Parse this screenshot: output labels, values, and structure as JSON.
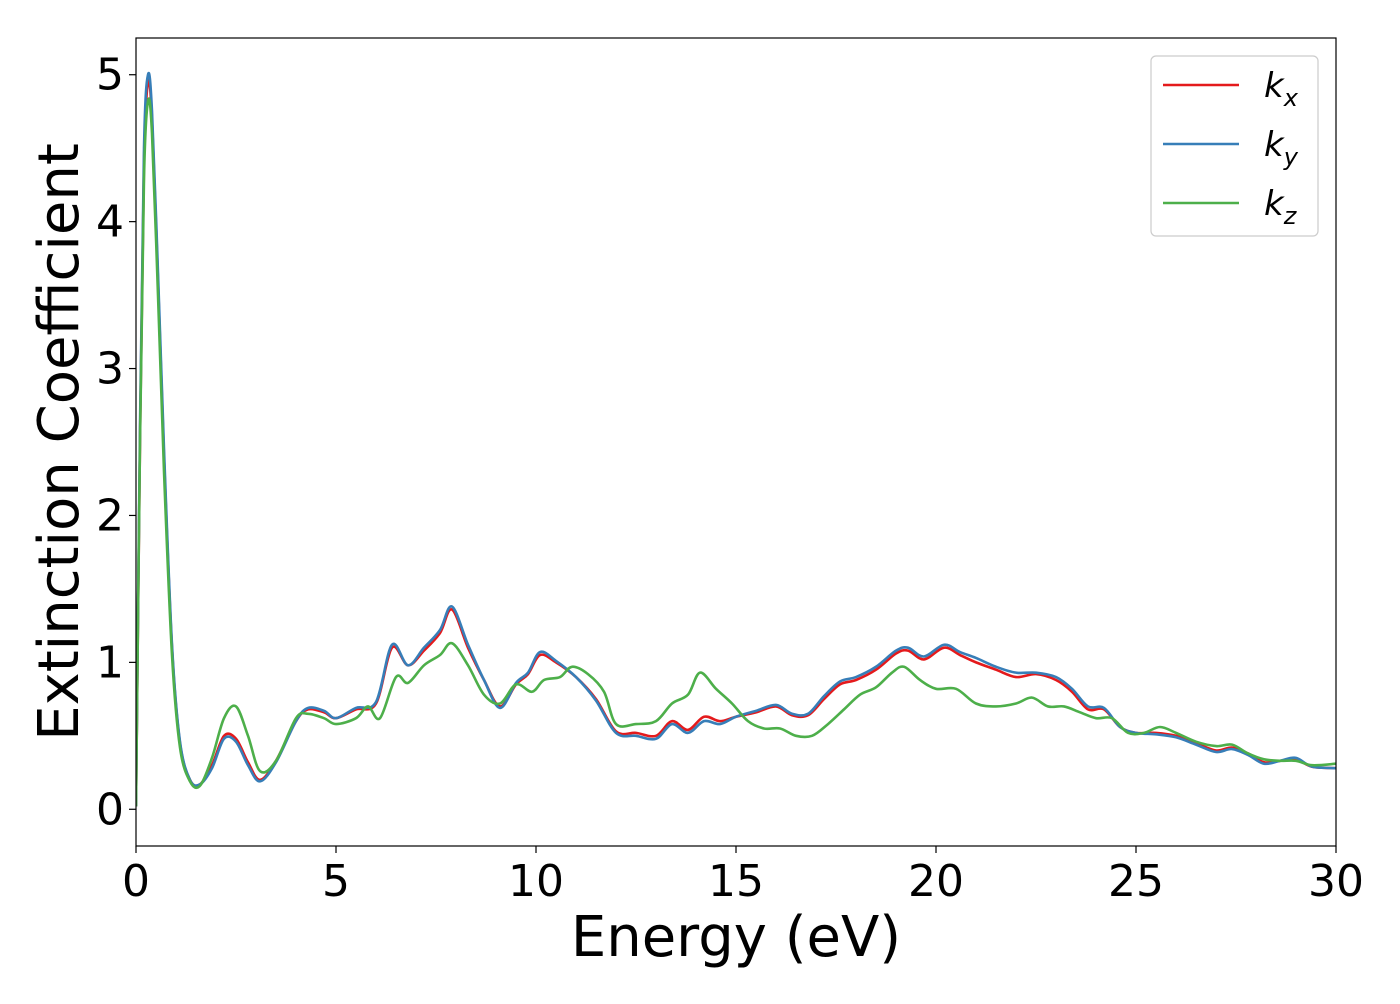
{
  "chart_data": {
    "type": "line",
    "title": "",
    "xlabel": "Energy (eV)",
    "ylabel": "Extinction Coefficient",
    "xlim": [
      0,
      30
    ],
    "ylim": [
      -0.25,
      5.25
    ],
    "xticks": [
      0,
      5,
      10,
      15,
      20,
      25,
      30
    ],
    "xtick_labels": [
      "0",
      "5",
      "10",
      "15",
      "20",
      "25",
      "30"
    ],
    "yticks": [
      0,
      1,
      2,
      3,
      4,
      5
    ],
    "ytick_labels": [
      "0",
      "1",
      "2",
      "3",
      "4",
      "5"
    ],
    "grid": false,
    "legend_position": "top-right",
    "series": [
      {
        "name": "k",
        "subscript": "x",
        "color": "#e41a1c",
        "points": [
          [
            0,
            0.02
          ],
          [
            0.1,
            2.5
          ],
          [
            0.2,
            4.4
          ],
          [
            0.3,
            4.95
          ],
          [
            0.4,
            4.7
          ],
          [
            0.55,
            3.6
          ],
          [
            0.7,
            2.4
          ],
          [
            0.9,
            1.1
          ],
          [
            1.1,
            0.45
          ],
          [
            1.35,
            0.2
          ],
          [
            1.6,
            0.17
          ],
          [
            1.9,
            0.3
          ],
          [
            2.2,
            0.5
          ],
          [
            2.5,
            0.48
          ],
          [
            2.8,
            0.32
          ],
          [
            3.1,
            0.2
          ],
          [
            3.5,
            0.33
          ],
          [
            4.0,
            0.6
          ],
          [
            4.3,
            0.68
          ],
          [
            4.7,
            0.66
          ],
          [
            5.0,
            0.62
          ],
          [
            5.5,
            0.68
          ],
          [
            6.0,
            0.72
          ],
          [
            6.4,
            1.1
          ],
          [
            6.8,
            0.98
          ],
          [
            7.2,
            1.08
          ],
          [
            7.6,
            1.2
          ],
          [
            7.9,
            1.36
          ],
          [
            8.3,
            1.1
          ],
          [
            8.7,
            0.88
          ],
          [
            9.1,
            0.7
          ],
          [
            9.5,
            0.85
          ],
          [
            9.8,
            0.92
          ],
          [
            10.1,
            1.05
          ],
          [
            10.5,
            1.0
          ],
          [
            11.0,
            0.9
          ],
          [
            11.5,
            0.75
          ],
          [
            12.0,
            0.53
          ],
          [
            12.5,
            0.52
          ],
          [
            13.0,
            0.5
          ],
          [
            13.4,
            0.6
          ],
          [
            13.8,
            0.54
          ],
          [
            14.2,
            0.63
          ],
          [
            14.6,
            0.6
          ],
          [
            15.0,
            0.63
          ],
          [
            15.5,
            0.66
          ],
          [
            16.0,
            0.7
          ],
          [
            16.4,
            0.64
          ],
          [
            16.8,
            0.64
          ],
          [
            17.2,
            0.75
          ],
          [
            17.6,
            0.85
          ],
          [
            18.0,
            0.88
          ],
          [
            18.5,
            0.95
          ],
          [
            19.0,
            1.06
          ],
          [
            19.3,
            1.08
          ],
          [
            19.7,
            1.02
          ],
          [
            20.2,
            1.1
          ],
          [
            20.6,
            1.05
          ],
          [
            21.0,
            1.0
          ],
          [
            21.5,
            0.95
          ],
          [
            22.0,
            0.9
          ],
          [
            22.5,
            0.92
          ],
          [
            23.0,
            0.88
          ],
          [
            23.4,
            0.8
          ],
          [
            23.8,
            0.68
          ],
          [
            24.2,
            0.68
          ],
          [
            24.6,
            0.56
          ],
          [
            25.0,
            0.52
          ],
          [
            25.5,
            0.52
          ],
          [
            26.0,
            0.5
          ],
          [
            26.5,
            0.45
          ],
          [
            27.0,
            0.4
          ],
          [
            27.4,
            0.42
          ],
          [
            27.8,
            0.38
          ],
          [
            28.2,
            0.32
          ],
          [
            28.6,
            0.33
          ],
          [
            29.0,
            0.34
          ],
          [
            29.4,
            0.29
          ],
          [
            30.0,
            0.28
          ]
        ]
      },
      {
        "name": "k",
        "subscript": "y",
        "color": "#377eb8",
        "points": [
          [
            0,
            0.02
          ],
          [
            0.1,
            2.6
          ],
          [
            0.2,
            4.5
          ],
          [
            0.3,
            5.0
          ],
          [
            0.4,
            4.75
          ],
          [
            0.55,
            3.65
          ],
          [
            0.7,
            2.45
          ],
          [
            0.9,
            1.12
          ],
          [
            1.1,
            0.46
          ],
          [
            1.35,
            0.2
          ],
          [
            1.6,
            0.17
          ],
          [
            1.9,
            0.28
          ],
          [
            2.2,
            0.48
          ],
          [
            2.5,
            0.46
          ],
          [
            2.8,
            0.3
          ],
          [
            3.1,
            0.19
          ],
          [
            3.5,
            0.32
          ],
          [
            4.0,
            0.6
          ],
          [
            4.3,
            0.69
          ],
          [
            4.7,
            0.67
          ],
          [
            5.0,
            0.62
          ],
          [
            5.5,
            0.69
          ],
          [
            6.0,
            0.73
          ],
          [
            6.4,
            1.12
          ],
          [
            6.8,
            0.98
          ],
          [
            7.2,
            1.1
          ],
          [
            7.6,
            1.22
          ],
          [
            7.9,
            1.38
          ],
          [
            8.3,
            1.12
          ],
          [
            8.7,
            0.88
          ],
          [
            9.1,
            0.69
          ],
          [
            9.5,
            0.86
          ],
          [
            9.8,
            0.93
          ],
          [
            10.1,
            1.07
          ],
          [
            10.5,
            1.01
          ],
          [
            11.0,
            0.9
          ],
          [
            11.5,
            0.74
          ],
          [
            12.0,
            0.52
          ],
          [
            12.5,
            0.5
          ],
          [
            13.0,
            0.48
          ],
          [
            13.4,
            0.58
          ],
          [
            13.8,
            0.52
          ],
          [
            14.2,
            0.6
          ],
          [
            14.6,
            0.58
          ],
          [
            15.0,
            0.63
          ],
          [
            15.5,
            0.67
          ],
          [
            16.0,
            0.71
          ],
          [
            16.4,
            0.65
          ],
          [
            16.8,
            0.65
          ],
          [
            17.2,
            0.77
          ],
          [
            17.6,
            0.87
          ],
          [
            18.0,
            0.9
          ],
          [
            18.5,
            0.97
          ],
          [
            19.0,
            1.08
          ],
          [
            19.3,
            1.1
          ],
          [
            19.7,
            1.04
          ],
          [
            20.2,
            1.12
          ],
          [
            20.6,
            1.07
          ],
          [
            21.0,
            1.03
          ],
          [
            21.5,
            0.97
          ],
          [
            22.0,
            0.93
          ],
          [
            22.5,
            0.93
          ],
          [
            23.0,
            0.9
          ],
          [
            23.4,
            0.82
          ],
          [
            23.8,
            0.7
          ],
          [
            24.2,
            0.69
          ],
          [
            24.6,
            0.56
          ],
          [
            25.0,
            0.52
          ],
          [
            25.5,
            0.51
          ],
          [
            26.0,
            0.49
          ],
          [
            26.5,
            0.44
          ],
          [
            27.0,
            0.39
          ],
          [
            27.4,
            0.41
          ],
          [
            27.8,
            0.37
          ],
          [
            28.2,
            0.31
          ],
          [
            28.6,
            0.33
          ],
          [
            29.0,
            0.35
          ],
          [
            29.4,
            0.29
          ],
          [
            30.0,
            0.28
          ]
        ]
      },
      {
        "name": "k",
        "subscript": "z",
        "color": "#4daf4a",
        "points": [
          [
            0,
            0.02
          ],
          [
            0.1,
            2.5
          ],
          [
            0.2,
            4.3
          ],
          [
            0.3,
            4.82
          ],
          [
            0.4,
            4.6
          ],
          [
            0.55,
            3.5
          ],
          [
            0.7,
            2.3
          ],
          [
            0.9,
            1.05
          ],
          [
            1.1,
            0.42
          ],
          [
            1.35,
            0.19
          ],
          [
            1.6,
            0.16
          ],
          [
            1.9,
            0.35
          ],
          [
            2.2,
            0.62
          ],
          [
            2.5,
            0.7
          ],
          [
            2.8,
            0.5
          ],
          [
            3.1,
            0.26
          ],
          [
            3.5,
            0.33
          ],
          [
            4.0,
            0.62
          ],
          [
            4.3,
            0.65
          ],
          [
            4.7,
            0.62
          ],
          [
            5.0,
            0.58
          ],
          [
            5.5,
            0.62
          ],
          [
            5.8,
            0.7
          ],
          [
            6.1,
            0.62
          ],
          [
            6.5,
            0.9
          ],
          [
            6.8,
            0.86
          ],
          [
            7.2,
            0.98
          ],
          [
            7.6,
            1.05
          ],
          [
            7.9,
            1.13
          ],
          [
            8.3,
            0.98
          ],
          [
            8.7,
            0.78
          ],
          [
            9.1,
            0.72
          ],
          [
            9.5,
            0.85
          ],
          [
            9.9,
            0.8
          ],
          [
            10.2,
            0.88
          ],
          [
            10.6,
            0.9
          ],
          [
            10.9,
            0.97
          ],
          [
            11.3,
            0.92
          ],
          [
            11.7,
            0.8
          ],
          [
            12.0,
            0.58
          ],
          [
            12.5,
            0.58
          ],
          [
            13.0,
            0.6
          ],
          [
            13.4,
            0.72
          ],
          [
            13.8,
            0.78
          ],
          [
            14.1,
            0.93
          ],
          [
            14.5,
            0.82
          ],
          [
            14.9,
            0.72
          ],
          [
            15.3,
            0.6
          ],
          [
            15.7,
            0.55
          ],
          [
            16.1,
            0.55
          ],
          [
            16.5,
            0.5
          ],
          [
            16.9,
            0.5
          ],
          [
            17.3,
            0.58
          ],
          [
            17.7,
            0.68
          ],
          [
            18.1,
            0.78
          ],
          [
            18.5,
            0.83
          ],
          [
            18.9,
            0.93
          ],
          [
            19.2,
            0.97
          ],
          [
            19.6,
            0.88
          ],
          [
            20.0,
            0.82
          ],
          [
            20.5,
            0.82
          ],
          [
            21.0,
            0.72
          ],
          [
            21.5,
            0.7
          ],
          [
            22.0,
            0.72
          ],
          [
            22.4,
            0.76
          ],
          [
            22.8,
            0.7
          ],
          [
            23.2,
            0.7
          ],
          [
            23.6,
            0.66
          ],
          [
            24.0,
            0.62
          ],
          [
            24.4,
            0.62
          ],
          [
            24.8,
            0.52
          ],
          [
            25.2,
            0.52
          ],
          [
            25.6,
            0.56
          ],
          [
            26.0,
            0.52
          ],
          [
            26.5,
            0.46
          ],
          [
            27.0,
            0.43
          ],
          [
            27.4,
            0.44
          ],
          [
            27.8,
            0.38
          ],
          [
            28.2,
            0.34
          ],
          [
            28.6,
            0.33
          ],
          [
            29.0,
            0.33
          ],
          [
            29.4,
            0.3
          ],
          [
            30.0,
            0.31
          ]
        ]
      }
    ]
  }
}
